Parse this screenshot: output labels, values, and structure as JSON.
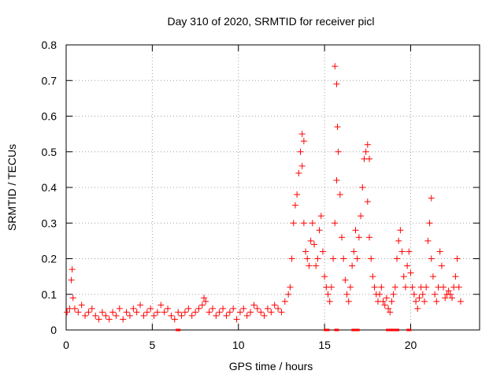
{
  "chart_data": {
    "type": "scatter",
    "title": "Day 310 of 2020, SRMTID for receiver picl",
    "xlabel": "GPS time / hours",
    "ylabel": "SRMTID / TECUs",
    "xlim": [
      0,
      24
    ],
    "ylim": [
      0,
      0.8
    ],
    "xticks": [
      0,
      5,
      10,
      15,
      20
    ],
    "yticks": [
      0,
      0.1,
      0.2,
      0.3,
      0.4,
      0.5,
      0.6,
      0.7,
      0.8
    ],
    "ytick_labels": [
      "0",
      "0.1",
      "0.2",
      "0.3",
      "0.4",
      "0.5",
      "0.6",
      "0.7",
      "0.8"
    ],
    "grid": true,
    "marker": "plus",
    "series": [
      {
        "name": "SRMTID",
        "color": "#ff0000",
        "x": [
          0.05,
          0.2,
          0.3,
          0.35,
          0.4,
          0.5,
          0.7,
          0.9,
          1.1,
          1.3,
          1.5,
          1.7,
          1.9,
          2.1,
          2.3,
          2.5,
          2.7,
          2.9,
          3.1,
          3.3,
          3.5,
          3.7,
          3.9,
          4.1,
          4.3,
          4.5,
          4.7,
          4.9,
          5.1,
          5.3,
          5.5,
          5.7,
          5.9,
          6.1,
          6.3,
          6.5,
          6.7,
          6.9,
          7.1,
          7.3,
          7.5,
          7.7,
          7.9,
          8.0,
          8.1,
          8.3,
          8.5,
          8.7,
          8.9,
          9.1,
          9.3,
          9.5,
          9.7,
          9.9,
          10.1,
          10.3,
          10.5,
          10.7,
          10.9,
          11.1,
          11.3,
          11.5,
          11.7,
          11.9,
          12.1,
          12.3,
          12.5,
          12.7,
          12.9,
          13.0,
          13.1,
          13.2,
          13.3,
          13.4,
          13.5,
          13.6,
          13.7,
          13.8,
          13.9,
          14.0,
          14.1,
          14.2,
          14.3,
          14.4,
          14.5,
          14.6,
          14.7,
          14.8,
          14.9,
          15.0,
          15.1,
          15.2,
          15.3,
          15.4,
          15.5,
          15.6,
          15.7,
          15.8,
          15.9,
          16.0,
          16.1,
          16.2,
          16.3,
          16.4,
          16.5,
          16.6,
          16.7,
          16.8,
          16.9,
          17.0,
          17.1,
          17.2,
          17.3,
          17.4,
          17.5,
          17.6,
          17.7,
          17.8,
          17.9,
          18.0,
          18.1,
          18.2,
          18.3,
          18.4,
          18.5,
          18.6,
          18.7,
          18.8,
          18.9,
          19.0,
          19.1,
          19.2,
          19.3,
          19.4,
          19.5,
          19.6,
          19.7,
          19.8,
          19.9,
          20.0,
          20.1,
          20.2,
          20.3,
          20.4,
          20.5,
          20.6,
          20.7,
          20.8,
          20.9,
          21.0,
          21.1,
          21.2,
          21.3,
          21.4,
          21.5,
          21.6,
          21.7,
          21.8,
          21.9,
          22.0,
          22.1,
          22.2,
          22.3,
          22.4,
          22.5,
          22.6,
          22.7,
          22.8,
          22.9,
          15.6,
          15.7,
          15.75,
          17.5,
          17.6,
          13.7,
          13.8,
          21.2
        ],
        "y": [
          0.05,
          0.06,
          0.14,
          0.17,
          0.09,
          0.06,
          0.05,
          0.07,
          0.04,
          0.05,
          0.06,
          0.04,
          0.03,
          0.05,
          0.04,
          0.03,
          0.05,
          0.04,
          0.06,
          0.03,
          0.05,
          0.04,
          0.06,
          0.05,
          0.07,
          0.04,
          0.05,
          0.06,
          0.04,
          0.05,
          0.07,
          0.05,
          0.06,
          0.04,
          0.03,
          0.05,
          0.04,
          0.05,
          0.06,
          0.04,
          0.05,
          0.06,
          0.07,
          0.09,
          0.08,
          0.05,
          0.06,
          0.04,
          0.05,
          0.06,
          0.04,
          0.05,
          0.06,
          0.03,
          0.05,
          0.06,
          0.04,
          0.05,
          0.07,
          0.06,
          0.05,
          0.04,
          0.06,
          0.05,
          0.07,
          0.06,
          0.05,
          0.08,
          0.1,
          0.12,
          0.2,
          0.3,
          0.35,
          0.38,
          0.44,
          0.5,
          0.46,
          0.3,
          0.22,
          0.2,
          0.18,
          0.25,
          0.3,
          0.24,
          0.18,
          0.2,
          0.28,
          0.32,
          0.22,
          0.15,
          0.12,
          0.1,
          0.08,
          0.12,
          0.2,
          0.3,
          0.42,
          0.5,
          0.38,
          0.26,
          0.2,
          0.14,
          0.1,
          0.08,
          0.12,
          0.18,
          0.22,
          0.28,
          0.2,
          0.26,
          0.32,
          0.4,
          0.48,
          0.5,
          0.36,
          0.26,
          0.2,
          0.15,
          0.12,
          0.1,
          0.08,
          0.1,
          0.12,
          0.08,
          0.07,
          0.09,
          0.06,
          0.05,
          0.08,
          0.1,
          0.12,
          0.2,
          0.25,
          0.28,
          0.22,
          0.15,
          0.12,
          0.18,
          0.22,
          0.16,
          0.12,
          0.1,
          0.08,
          0.06,
          0.09,
          0.12,
          0.1,
          0.08,
          0.12,
          0.25,
          0.3,
          0.2,
          0.15,
          0.1,
          0.08,
          0.12,
          0.22,
          0.18,
          0.12,
          0.09,
          0.1,
          0.11,
          0.1,
          0.09,
          0.12,
          0.15,
          0.2,
          0.12,
          0.08,
          0.74,
          0.69,
          0.57,
          0.52,
          0.48,
          0.55,
          0.53,
          0.37
        ],
        "dropouts_x": [
          15.1,
          15.15,
          15.7,
          16.7,
          16.9,
          18.7,
          18.8,
          18.9,
          19.0,
          19.1,
          19.2,
          19.9,
          6.5
        ]
      }
    ]
  }
}
